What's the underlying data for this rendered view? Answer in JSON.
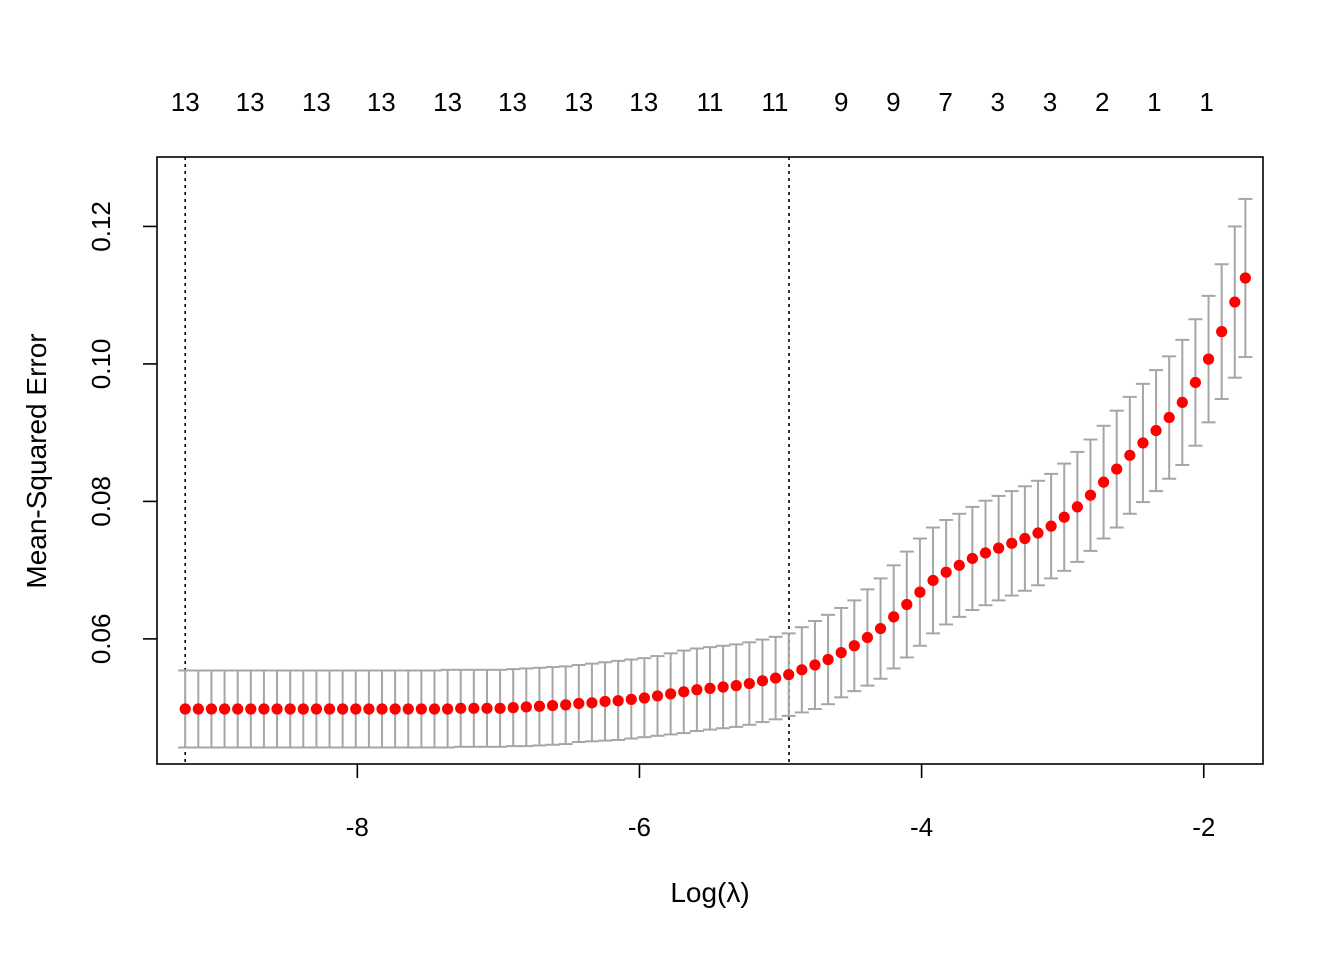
{
  "chart_data": {
    "type": "scatter",
    "xlabel": "Log(λ)",
    "ylabel": "Mean-Squared Error",
    "xlim": [
      -9.42,
      -1.58
    ],
    "ylim": [
      0.0418,
      0.1301
    ],
    "x_ticks": [
      -8,
      -6,
      -4,
      -2
    ],
    "x_tick_labels": [
      "-8",
      "-6",
      "-4",
      "-2"
    ],
    "y_ticks": [
      0.06,
      0.08,
      0.1,
      0.12
    ],
    "y_tick_labels": [
      "0.06",
      "0.08",
      "0.10",
      "0.12"
    ],
    "top_labels": [
      {
        "x": -9.22,
        "label": "13"
      },
      {
        "x": -8.76,
        "label": "13"
      },
      {
        "x": -8.29,
        "label": "13"
      },
      {
        "x": -7.83,
        "label": "13"
      },
      {
        "x": -7.36,
        "label": "13"
      },
      {
        "x": -6.9,
        "label": "13"
      },
      {
        "x": -6.43,
        "label": "13"
      },
      {
        "x": -5.97,
        "label": "13"
      },
      {
        "x": -5.5,
        "label": "11"
      },
      {
        "x": -5.04,
        "label": "11"
      },
      {
        "x": -4.57,
        "label": "9"
      },
      {
        "x": -4.2,
        "label": "9"
      },
      {
        "x": -3.83,
        "label": "7"
      },
      {
        "x": -3.46,
        "label": "3"
      },
      {
        "x": -3.09,
        "label": "3"
      },
      {
        "x": -2.72,
        "label": "2"
      },
      {
        "x": -2.35,
        "label": "1"
      },
      {
        "x": -1.98,
        "label": "1"
      }
    ],
    "vlines": [
      -9.22,
      -4.94
    ],
    "grid": false,
    "point_color": "#ff0000",
    "errorbar_color": "#a6a6a6",
    "series": [
      {
        "points": [
          [
            -9.22,
            0.0498
          ],
          [
            -9.127,
            0.0498
          ],
          [
            -9.034,
            0.0498
          ],
          [
            -8.941,
            0.0498
          ],
          [
            -8.848,
            0.0498
          ],
          [
            -8.755,
            0.0498
          ],
          [
            -8.662,
            0.0498
          ],
          [
            -8.569,
            0.0498
          ],
          [
            -8.476,
            0.0498
          ],
          [
            -8.383,
            0.0498
          ],
          [
            -8.29,
            0.0498
          ],
          [
            -8.197,
            0.0498
          ],
          [
            -8.104,
            0.0498
          ],
          [
            -8.011,
            0.0498
          ],
          [
            -7.918,
            0.0498
          ],
          [
            -7.825,
            0.0498
          ],
          [
            -7.732,
            0.0498
          ],
          [
            -7.639,
            0.0498
          ],
          [
            -7.546,
            0.0498
          ],
          [
            -7.453,
            0.0498
          ],
          [
            -7.36,
            0.0498
          ],
          [
            -7.267,
            0.0499
          ],
          [
            -7.174,
            0.0499
          ],
          [
            -7.081,
            0.0499
          ],
          [
            -6.988,
            0.0499
          ],
          [
            -6.895,
            0.05
          ],
          [
            -6.802,
            0.0501
          ],
          [
            -6.709,
            0.0502
          ],
          [
            -6.616,
            0.0503
          ],
          [
            -6.523,
            0.0504
          ],
          [
            -6.43,
            0.0506
          ],
          [
            -6.337,
            0.0507
          ],
          [
            -6.244,
            0.0509
          ],
          [
            -6.151,
            0.051
          ],
          [
            -6.058,
            0.0512
          ],
          [
            -5.965,
            0.0514
          ],
          [
            -5.872,
            0.0517
          ],
          [
            -5.779,
            0.052
          ],
          [
            -5.686,
            0.0523
          ],
          [
            -5.593,
            0.0526
          ],
          [
            -5.5,
            0.0528
          ],
          [
            -5.407,
            0.053
          ],
          [
            -5.314,
            0.0532
          ],
          [
            -5.221,
            0.0535
          ],
          [
            -5.128,
            0.0539
          ],
          [
            -5.035,
            0.0543
          ],
          [
            -4.942,
            0.0548
          ],
          [
            -4.849,
            0.0555
          ],
          [
            -4.756,
            0.0562
          ],
          [
            -4.663,
            0.057
          ],
          [
            -4.57,
            0.058
          ],
          [
            -4.477,
            0.059
          ],
          [
            -4.384,
            0.0602
          ],
          [
            -4.291,
            0.0615
          ],
          [
            -4.198,
            0.0632
          ],
          [
            -4.105,
            0.065
          ],
          [
            -4.012,
            0.0668
          ],
          [
            -3.919,
            0.0685
          ],
          [
            -3.826,
            0.0697
          ],
          [
            -3.733,
            0.0707
          ],
          [
            -3.64,
            0.0717
          ],
          [
            -3.547,
            0.0725
          ],
          [
            -3.454,
            0.0732
          ],
          [
            -3.361,
            0.0739
          ],
          [
            -3.268,
            0.0746
          ],
          [
            -3.175,
            0.0754
          ],
          [
            -3.082,
            0.0764
          ],
          [
            -2.989,
            0.0777
          ],
          [
            -2.896,
            0.0792
          ],
          [
            -2.803,
            0.0809
          ],
          [
            -2.71,
            0.0828
          ],
          [
            -2.617,
            0.0847
          ],
          [
            -2.524,
            0.0867
          ],
          [
            -2.431,
            0.0885
          ],
          [
            -2.338,
            0.0903
          ],
          [
            -2.245,
            0.0922
          ],
          [
            -2.152,
            0.0944
          ],
          [
            -2.059,
            0.0973
          ],
          [
            -1.966,
            0.1007
          ],
          [
            -1.873,
            0.1047
          ],
          [
            -1.78,
            0.109
          ],
          [
            -1.705,
            0.1125
          ]
        ]
      }
    ],
    "error_bars": [
      [
        -9.22,
        0.0554,
        0.0442
      ],
      [
        -9.127,
        0.0554,
        0.0442
      ],
      [
        -9.034,
        0.0554,
        0.0442
      ],
      [
        -8.941,
        0.0554,
        0.0442
      ],
      [
        -8.848,
        0.0554,
        0.0442
      ],
      [
        -8.755,
        0.0554,
        0.0442
      ],
      [
        -8.662,
        0.0554,
        0.0442
      ],
      [
        -8.569,
        0.0554,
        0.0442
      ],
      [
        -8.476,
        0.0554,
        0.0442
      ],
      [
        -8.383,
        0.0554,
        0.0442
      ],
      [
        -8.29,
        0.0554,
        0.0442
      ],
      [
        -8.197,
        0.0554,
        0.0442
      ],
      [
        -8.104,
        0.0554,
        0.0442
      ],
      [
        -8.011,
        0.0554,
        0.0442
      ],
      [
        -7.918,
        0.0554,
        0.0442
      ],
      [
        -7.825,
        0.0554,
        0.0442
      ],
      [
        -7.732,
        0.0554,
        0.0442
      ],
      [
        -7.639,
        0.0554,
        0.0442
      ],
      [
        -7.546,
        0.0554,
        0.0442
      ],
      [
        -7.453,
        0.0554,
        0.0442
      ],
      [
        -7.36,
        0.0555,
        0.0442
      ],
      [
        -7.267,
        0.0555,
        0.0443
      ],
      [
        -7.174,
        0.0555,
        0.0443
      ],
      [
        -7.081,
        0.0555,
        0.0443
      ],
      [
        -6.988,
        0.0555,
        0.0443
      ],
      [
        -6.895,
        0.0556,
        0.0444
      ],
      [
        -6.802,
        0.0557,
        0.0444
      ],
      [
        -6.709,
        0.0558,
        0.0445
      ],
      [
        -6.616,
        0.0559,
        0.0446
      ],
      [
        -6.523,
        0.056,
        0.0447
      ],
      [
        -6.43,
        0.0562,
        0.045
      ],
      [
        -6.337,
        0.0564,
        0.0451
      ],
      [
        -6.244,
        0.0566,
        0.0452
      ],
      [
        -6.151,
        0.0568,
        0.0453
      ],
      [
        -6.058,
        0.057,
        0.0455
      ],
      [
        -5.965,
        0.0572,
        0.0457
      ],
      [
        -5.872,
        0.0575,
        0.0459
      ],
      [
        -5.779,
        0.0579,
        0.0461
      ],
      [
        -5.686,
        0.0583,
        0.0463
      ],
      [
        -5.593,
        0.0586,
        0.0466
      ],
      [
        -5.5,
        0.0588,
        0.0468
      ],
      [
        -5.407,
        0.059,
        0.047
      ],
      [
        -5.314,
        0.0592,
        0.0472
      ],
      [
        -5.221,
        0.0595,
        0.0475
      ],
      [
        -5.128,
        0.0599,
        0.0479
      ],
      [
        -5.035,
        0.0603,
        0.0483
      ],
      [
        -4.942,
        0.0608,
        0.0488
      ],
      [
        -4.849,
        0.0617,
        0.0493
      ],
      [
        -4.756,
        0.0626,
        0.0498
      ],
      [
        -4.663,
        0.0635,
        0.0505
      ],
      [
        -4.57,
        0.0645,
        0.0515
      ],
      [
        -4.477,
        0.0656,
        0.0524
      ],
      [
        -4.384,
        0.0672,
        0.0532
      ],
      [
        -4.291,
        0.0688,
        0.0542
      ],
      [
        -4.198,
        0.0707,
        0.0557
      ],
      [
        -4.105,
        0.0727,
        0.0573
      ],
      [
        -4.012,
        0.0746,
        0.059
      ],
      [
        -3.919,
        0.0762,
        0.0608
      ],
      [
        -3.826,
        0.0773,
        0.0621
      ],
      [
        -3.733,
        0.0782,
        0.0632
      ],
      [
        -3.64,
        0.0792,
        0.0642
      ],
      [
        -3.547,
        0.0801,
        0.0649
      ],
      [
        -3.454,
        0.0808,
        0.0656
      ],
      [
        -3.361,
        0.0815,
        0.0663
      ],
      [
        -3.268,
        0.0822,
        0.067
      ],
      [
        -3.175,
        0.083,
        0.0678
      ],
      [
        -3.082,
        0.084,
        0.0688
      ],
      [
        -2.989,
        0.0855,
        0.0699
      ],
      [
        -2.896,
        0.0872,
        0.0712
      ],
      [
        -2.803,
        0.089,
        0.0728
      ],
      [
        -2.71,
        0.091,
        0.0746
      ],
      [
        -2.617,
        0.0932,
        0.0762
      ],
      [
        -2.524,
        0.0952,
        0.0782
      ],
      [
        -2.431,
        0.0971,
        0.0799
      ],
      [
        -2.338,
        0.0991,
        0.0815
      ],
      [
        -2.245,
        0.1011,
        0.0833
      ],
      [
        -2.152,
        0.1035,
        0.0853
      ],
      [
        -2.059,
        0.1065,
        0.0881
      ],
      [
        -1.966,
        0.1099,
        0.0915
      ],
      [
        -1.873,
        0.1145,
        0.0949
      ],
      [
        -1.78,
        0.12,
        0.098
      ],
      [
        -1.705,
        0.124,
        0.101
      ]
    ]
  }
}
